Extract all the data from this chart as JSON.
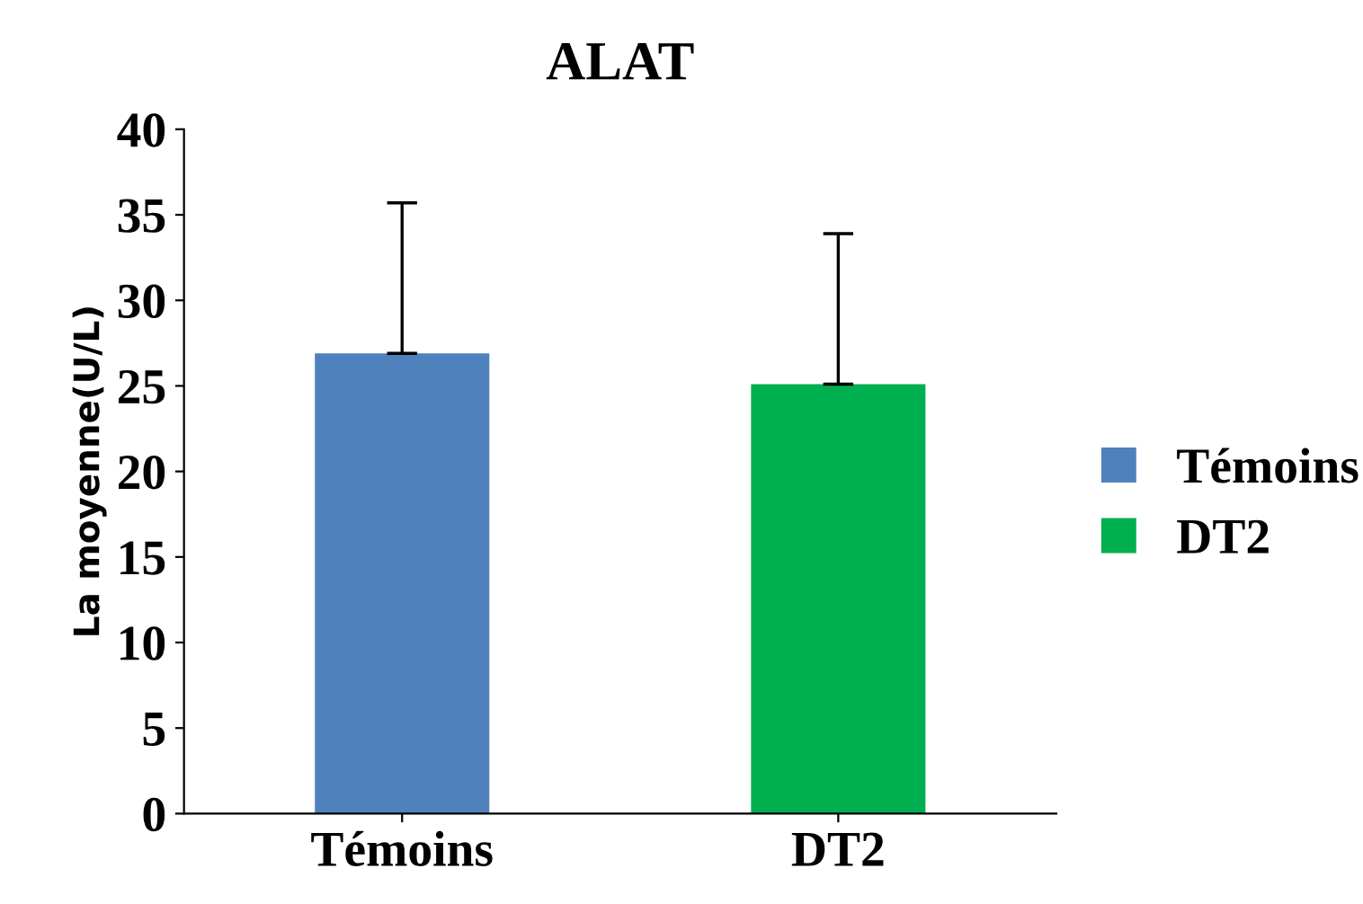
{
  "chart_data": {
    "type": "bar",
    "title": "ALAT",
    "ylabel": "La moyenne(U/L)",
    "categories": [
      "Témoins",
      "DT2"
    ],
    "series": [
      {
        "name": "Témoins",
        "color": "#4f81bd",
        "values": [
          26.9,
          null
        ],
        "errors": [
          [
            26.9,
            35.7
          ],
          null
        ]
      },
      {
        "name": "DT2",
        "color": "#00b050",
        "values": [
          null,
          25.1
        ],
        "errors": [
          null,
          [
            25.1,
            33.9
          ]
        ]
      }
    ],
    "ylim": [
      0,
      40
    ],
    "yticks": [
      0,
      5,
      10,
      15,
      20,
      25,
      30,
      35,
      40
    ],
    "grid": false,
    "legend": "right"
  }
}
